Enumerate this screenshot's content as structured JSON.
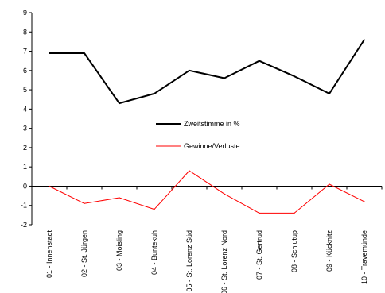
{
  "chart_data": {
    "type": "line",
    "categories": [
      "01 - Innenstadt",
      "02 - St. Jürgen",
      "03 - Moisling",
      "04 - Buntekuh",
      "05 - St. Lorenz Süd",
      "06 - St. Lorenz Nord",
      "07 - St. Gertrud",
      "08 - Schlutup",
      "09 - Kücknitz",
      "10 - Travemünde"
    ],
    "series": [
      {
        "name": "Zweitstimme in %",
        "color": "#000000",
        "values": [
          6.9,
          6.9,
          4.3,
          4.8,
          6.0,
          5.6,
          6.5,
          5.7,
          4.8,
          7.6
        ]
      },
      {
        "name": "Gewinne/Verluste",
        "color": "#ff0000",
        "values": [
          0.0,
          -0.9,
          -0.6,
          -1.2,
          0.8,
          -0.4,
          -1.4,
          -1.4,
          0.1,
          -0.8
        ]
      }
    ],
    "y_ticks": [
      "9",
      "8",
      "7",
      "6",
      "5",
      "4",
      "3",
      "2",
      "1",
      "0",
      "-1",
      "-2"
    ],
    "ylim": [
      -2,
      9
    ],
    "grid": false,
    "legend_position": "center-right"
  }
}
